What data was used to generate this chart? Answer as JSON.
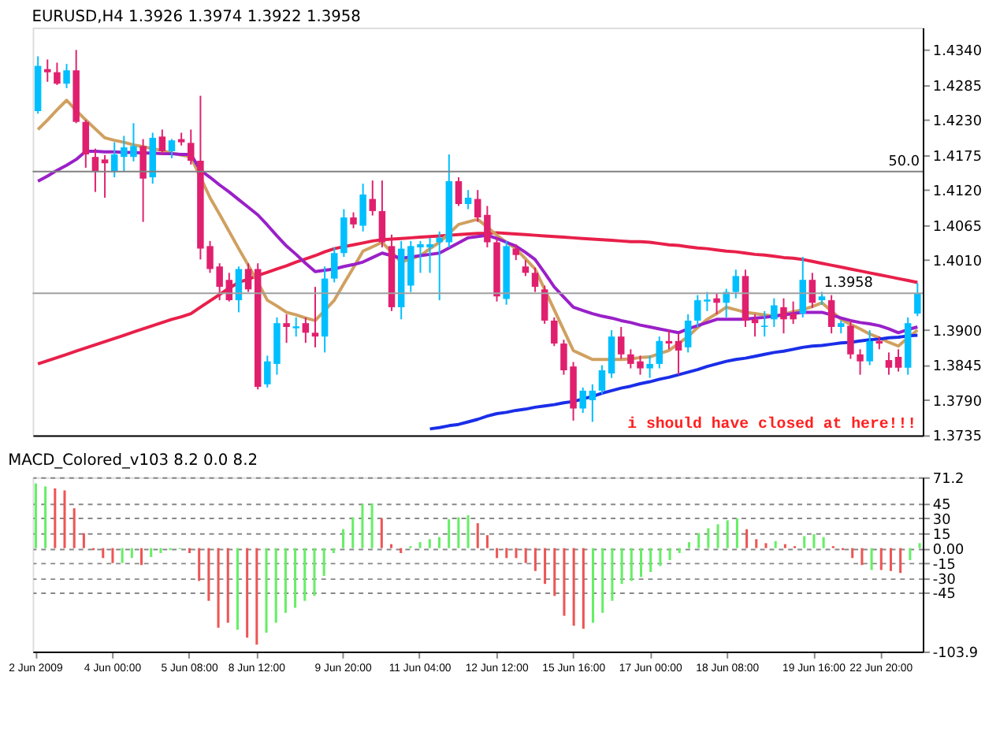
{
  "chart_data": [
    {
      "type": "candlestick",
      "title": "EURUSD,H4  1.3926 1.3974 1.3922 1.3958",
      "tick_labels": "y",
      "ohlc": [
        [
          1.4244,
          1.433,
          1.424,
          1.4315
        ],
        [
          1.431,
          1.4325,
          1.429,
          1.4305
        ],
        [
          1.4305,
          1.432,
          1.4285,
          1.4287
        ],
        [
          1.4287,
          1.4318,
          1.428,
          1.4308
        ],
        [
          1.4308,
          1.434,
          1.4225,
          1.4227
        ],
        [
          1.4227,
          1.423,
          1.4155,
          1.4176
        ],
        [
          1.4172,
          1.4185,
          1.4117,
          1.4149
        ],
        [
          1.4168,
          1.4175,
          1.4108,
          1.4162
        ],
        [
          1.4149,
          1.4195,
          1.414,
          1.4176
        ],
        [
          1.4172,
          1.4205,
          1.415,
          1.4187
        ],
        [
          1.4172,
          1.4225,
          1.4165,
          1.4189
        ],
        [
          1.4189,
          1.42,
          1.407,
          1.4138
        ],
        [
          1.414,
          1.421,
          1.413,
          1.4202
        ],
        [
          1.4204,
          1.4215,
          1.4175,
          1.4181
        ],
        [
          1.4181,
          1.42,
          1.417,
          1.4198
        ],
        [
          1.42,
          1.421,
          1.419,
          1.4195
        ],
        [
          1.4194,
          1.4215,
          1.416,
          1.4166
        ],
        [
          1.4166,
          1.4268,
          1.4011,
          1.4028
        ],
        [
          1.4032,
          1.404,
          1.399,
          1.3996
        ],
        [
          1.4,
          1.4005,
          1.3947,
          1.3968
        ],
        [
          1.3979,
          1.399,
          1.3945,
          1.3947
        ],
        [
          1.3947,
          1.4,
          1.3928,
          1.3996
        ],
        [
          1.3996,
          1.4005,
          1.396,
          1.3964
        ],
        [
          1.3996,
          1.4005,
          1.3807,
          1.3811
        ],
        [
          1.3815,
          1.386,
          1.381,
          1.3851
        ],
        [
          1.3847,
          1.392,
          1.383,
          1.3911
        ],
        [
          1.3911,
          1.3925,
          1.388,
          1.3905
        ],
        [
          1.3903,
          1.392,
          1.389,
          1.3906
        ],
        [
          1.3911,
          1.392,
          1.388,
          1.3896
        ],
        [
          1.3896,
          1.3968,
          1.3873,
          1.389
        ],
        [
          1.389,
          1.4,
          1.3865,
          1.3981
        ],
        [
          1.3981,
          1.403,
          1.3975,
          1.4021
        ],
        [
          1.4021,
          1.409,
          1.4015,
          1.4077
        ],
        [
          1.4077,
          1.4085,
          1.406,
          1.4066
        ],
        [
          1.4064,
          1.413,
          1.4055,
          1.4113
        ],
        [
          1.4106,
          1.4135,
          1.408,
          1.4087
        ],
        [
          1.4087,
          1.4135,
          1.403,
          1.4038
        ],
        [
          1.4032,
          1.405,
          1.393,
          1.3936
        ],
        [
          1.3936,
          1.404,
          1.3917,
          1.4028
        ],
        [
          1.397,
          1.404,
          1.396,
          1.4032
        ],
        [
          1.403,
          1.404,
          1.399,
          1.4035
        ],
        [
          1.403,
          1.4045,
          1.399,
          1.4035
        ],
        [
          1.4038,
          1.4055,
          1.3947,
          1.4045
        ],
        [
          1.4038,
          1.4176,
          1.403,
          1.4134
        ],
        [
          1.4134,
          1.414,
          1.4095,
          1.4098
        ],
        [
          1.4098,
          1.412,
          1.409,
          1.4108
        ],
        [
          1.4106,
          1.412,
          1.407,
          1.4077
        ],
        [
          1.4081,
          1.4095,
          1.403,
          1.4038
        ],
        [
          1.4038,
          1.4045,
          1.3945,
          1.3953
        ],
        [
          1.3949,
          1.404,
          1.394,
          1.4032
        ],
        [
          1.4028,
          1.4035,
          1.401,
          1.4018
        ],
        [
          1.4,
          1.401,
          1.3985,
          1.399
        ],
        [
          1.399,
          1.3998,
          1.396,
          1.3968
        ],
        [
          1.3964,
          1.397,
          1.391,
          1.3915
        ],
        [
          1.3915,
          1.392,
          1.3875,
          1.3879
        ],
        [
          1.3879,
          1.3885,
          1.383,
          1.3837
        ],
        [
          1.3843,
          1.385,
          1.3758,
          1.3777
        ],
        [
          1.3777,
          1.381,
          1.377,
          1.3805
        ],
        [
          1.379,
          1.3815,
          1.3756,
          1.3805
        ],
        [
          1.3805,
          1.3845,
          1.38,
          1.3837
        ],
        [
          1.3832,
          1.39,
          1.3825,
          1.389
        ],
        [
          1.389,
          1.3905,
          1.3855,
          1.3862
        ],
        [
          1.3862,
          1.387,
          1.384,
          1.3847
        ],
        [
          1.3851,
          1.386,
          1.383,
          1.384
        ],
        [
          1.384,
          1.386,
          1.3825,
          1.3847
        ],
        [
          1.3847,
          1.389,
          1.384,
          1.3883
        ],
        [
          1.3883,
          1.39,
          1.387,
          1.3879
        ],
        [
          1.3883,
          1.3895,
          1.383,
          1.3868
        ],
        [
          1.3873,
          1.3925,
          1.3865,
          1.3915
        ],
        [
          1.3915,
          1.3955,
          1.3905,
          1.3947
        ],
        [
          1.3945,
          1.396,
          1.393,
          1.3948
        ],
        [
          1.395,
          1.3958,
          1.3925,
          1.3943
        ],
        [
          1.3943,
          1.3965,
          1.392,
          1.396
        ],
        [
          1.396,
          1.3995,
          1.395,
          1.3985
        ],
        [
          1.3985,
          1.3995,
          1.3905,
          1.3915
        ],
        [
          1.3917,
          1.3925,
          1.389,
          1.3911
        ],
        [
          1.3905,
          1.393,
          1.389,
          1.3907
        ],
        [
          1.3917,
          1.395,
          1.3905,
          1.3939
        ],
        [
          1.3936,
          1.395,
          1.3895,
          1.3917
        ],
        [
          1.3926,
          1.3945,
          1.391,
          1.3917
        ],
        [
          1.3926,
          1.4015,
          1.392,
          1.3979
        ],
        [
          1.3979,
          1.399,
          1.3935,
          1.3943
        ],
        [
          1.3947,
          1.396,
          1.394,
          1.3953
        ],
        [
          1.3947,
          1.3955,
          1.3895,
          1.3905
        ],
        [
          1.3905,
          1.3915,
          1.3895,
          1.3911
        ],
        [
          1.3907,
          1.3915,
          1.3855,
          1.3862
        ],
        [
          1.3862,
          1.387,
          1.383,
          1.3851
        ],
        [
          1.3851,
          1.39,
          1.3845,
          1.3883
        ],
        [
          1.3883,
          1.389,
          1.387,
          1.3879
        ],
        [
          1.3853,
          1.3865,
          1.383,
          1.3841
        ],
        [
          1.3858,
          1.387,
          1.3835,
          1.3841
        ],
        [
          1.3841,
          1.392,
          1.383,
          1.3911
        ],
        [
          1.3926,
          1.3974,
          1.3922,
          1.3958
        ]
      ],
      "colors": [
        "#00bfff",
        "#e0206f",
        "#e0206f",
        "#00bfff",
        "#e0206f",
        "#e0206f",
        "#e0206f",
        "#e0206f",
        "#00bfff",
        "#00bfff",
        "#00bfff",
        "#e0206f",
        "#00bfff",
        "#e0206f",
        "#00bfff",
        "#e0206f",
        "#e0206f",
        "#e0206f",
        "#e0206f",
        "#e0206f",
        "#e0206f",
        "#00bfff",
        "#e0206f",
        "#e0206f",
        "#00bfff",
        "#00bfff",
        "#e0206f",
        "#00bfff",
        "#e0206f",
        "#e0206f",
        "#00bfff",
        "#00bfff",
        "#00bfff",
        "#e0206f",
        "#00bfff",
        "#e0206f",
        "#e0206f",
        "#e0206f",
        "#00bfff",
        "#00bfff",
        "#00bfff",
        "#00bfff",
        "#00bfff",
        "#00bfff",
        "#e0206f",
        "#00bfff",
        "#e0206f",
        "#e0206f",
        "#e0206f",
        "#00bfff",
        "#e0206f",
        "#e0206f",
        "#e0206f",
        "#e0206f",
        "#e0206f",
        "#e0206f",
        "#e0206f",
        "#00bfff",
        "#00bfff",
        "#00bfff",
        "#00bfff",
        "#e0206f",
        "#e0206f",
        "#e0206f",
        "#00bfff",
        "#00bfff",
        "#e0206f",
        "#e0206f",
        "#00bfff",
        "#00bfff",
        "#00bfff",
        "#e0206f",
        "#00bfff",
        "#00bfff",
        "#e0206f",
        "#e0206f",
        "#00bfff",
        "#00bfff",
        "#e0206f",
        "#e0206f",
        "#00bfff",
        "#e0206f",
        "#00bfff",
        "#e0206f",
        "#00bfff",
        "#e0206f",
        "#e0206f",
        "#00bfff",
        "#e0206f",
        "#e0206f",
        "#e0206f",
        "#00bfff",
        "#00bfff"
      ],
      "series": [
        {
          "type": "line",
          "color": "#e8204a",
          "values": [
            1.3847,
            1.3852,
            1.3857,
            1.3862,
            1.3867,
            1.3872,
            1.3877,
            1.3882,
            1.3887,
            1.3892,
            1.3897,
            1.3902,
            1.3907,
            1.3912,
            1.3917,
            1.3921,
            1.3926,
            1.3936,
            1.3946,
            1.3956,
            1.3966,
            1.3975,
            1.398,
            1.3986,
            1.3991,
            1.3996,
            1.4001,
            1.4007,
            1.4012,
            1.4017,
            1.4023,
            1.4028,
            1.4031,
            1.4034,
            1.4037,
            1.404,
            1.4042,
            1.4043,
            1.4044,
            1.4045,
            1.4046,
            1.4047,
            1.4048,
            1.4049,
            1.405,
            1.4051,
            1.4052,
            1.4052,
            1.4053,
            1.4052,
            1.4051,
            1.405,
            1.4049,
            1.4048,
            1.4047,
            1.4046,
            1.4045,
            1.4044,
            1.4043,
            1.4042,
            1.4041,
            1.404,
            1.4039,
            1.4039,
            1.4038,
            1.4036,
            1.4034,
            1.4033,
            1.4031,
            1.4029,
            1.4028,
            1.4026,
            1.4024,
            1.4023,
            1.4021,
            1.4019,
            1.4018,
            1.4016,
            1.4014,
            1.4013,
            1.4011,
            1.4008,
            1.4005,
            1.4002,
            1.3999,
            1.3996,
            1.3993,
            1.399,
            1.3987,
            1.3984,
            1.3981,
            1.3978,
            1.3975
          ]
        },
        {
          "type": "line",
          "color": "#d0a060",
          "values": [
            1.4215,
            1.423,
            1.4246,
            1.4261,
            1.4245,
            1.423,
            1.4216,
            1.4202,
            1.4198,
            1.4195,
            1.4191,
            1.4188,
            1.4185,
            1.4182,
            1.4178,
            1.4175,
            1.4172,
            1.414,
            1.4108,
            1.4082,
            1.4055,
            1.4028,
            1.4002,
            1.3975,
            1.3947,
            1.3938,
            1.3928,
            1.3924,
            1.3919,
            1.3915,
            1.3931,
            1.3947,
            1.3973,
            1.3998,
            1.4024,
            1.4031,
            1.4038,
            1.4022,
            1.4007,
            1.4012,
            1.4017,
            1.4028,
            1.4038,
            1.4052,
            1.4066,
            1.407,
            1.4074,
            1.4062,
            1.4049,
            1.4038,
            1.4028,
            1.4012,
            1.3996,
            1.3964,
            1.3932,
            1.39,
            1.3868,
            1.3861,
            1.3854,
            1.3854,
            1.3854,
            1.3854,
            1.3855,
            1.3857,
            1.3858,
            1.3863,
            1.3868,
            1.3879,
            1.389,
            1.3904,
            1.3917,
            1.3926,
            1.3936,
            1.3932,
            1.3928,
            1.3926,
            1.3924,
            1.3922,
            1.3925,
            1.3929,
            1.3932,
            1.3937,
            1.3943,
            1.393,
            1.3917,
            1.3909,
            1.3902,
            1.3894,
            1.3888,
            1.3881,
            1.3875,
            1.3888,
            1.39
          ]
        },
        {
          "type": "line",
          "color": "#9a20c8",
          "values": [
            1.4134,
            1.4142,
            1.4151,
            1.4159,
            1.4168,
            1.4181,
            1.4181,
            1.418,
            1.418,
            1.4179,
            1.4179,
            1.4178,
            1.4178,
            1.4177,
            1.4177,
            1.4176,
            1.4176,
            1.4151,
            1.414,
            1.4128,
            1.4117,
            1.4105,
            1.4093,
            1.4081,
            1.4065,
            1.4048,
            1.4032,
            1.4019,
            1.4005,
            1.3992,
            1.3994,
            1.3996,
            1.4,
            1.4003,
            1.4007,
            1.4014,
            1.4021,
            1.4017,
            1.4013,
            1.4015,
            1.4017,
            1.4019,
            1.4021,
            1.4029,
            1.4037,
            1.4045,
            1.4047,
            1.4049,
            1.4044,
            1.4038,
            1.4032,
            1.4022,
            1.4011,
            1.399,
            1.3968,
            1.3952,
            1.3936,
            1.3931,
            1.3926,
            1.3922,
            1.3919,
            1.3915,
            1.3912,
            1.3908,
            1.3905,
            1.3902,
            1.3899,
            1.3896,
            1.3902,
            1.3907,
            1.3912,
            1.3917,
            1.3917,
            1.3917,
            1.3917,
            1.3919,
            1.392,
            1.3922,
            1.3924,
            1.3926,
            1.3928,
            1.3928,
            1.3928,
            1.3924,
            1.3919,
            1.3915,
            1.3912,
            1.391,
            1.3907,
            1.3902,
            1.3896,
            1.3901,
            1.3905
          ]
        },
        {
          "type": "line",
          "color": "#1a2ee8",
          "values": [
            null,
            null,
            null,
            null,
            null,
            null,
            null,
            null,
            null,
            null,
            null,
            null,
            null,
            null,
            null,
            null,
            null,
            null,
            null,
            null,
            null,
            null,
            null,
            null,
            null,
            null,
            null,
            null,
            null,
            null,
            null,
            null,
            null,
            null,
            null,
            null,
            null,
            null,
            null,
            null,
            null,
            1.3745,
            1.3747,
            1.375,
            1.3752,
            1.3756,
            1.376,
            1.3765,
            1.3769,
            1.3771,
            1.3774,
            1.3776,
            1.3779,
            1.3781,
            1.3783,
            1.3786,
            1.3788,
            1.3792,
            1.3796,
            1.3801,
            1.3805,
            1.3809,
            1.3812,
            1.3816,
            1.3819,
            1.3823,
            1.3826,
            1.383,
            1.3834,
            1.3838,
            1.3843,
            1.3847,
            1.3851,
            1.3854,
            1.3856,
            1.3859,
            1.3862,
            1.3865,
            1.3867,
            1.387,
            1.3873,
            1.3875,
            1.3876,
            1.3878,
            1.388,
            1.3881,
            1.3883,
            1.3885,
            1.3886,
            1.3888,
            1.3889,
            1.3891,
            1.3892
          ]
        }
      ],
      "ylim": [
        1.3735,
        1.4375
      ],
      "yticks": [
        1.3735,
        {
          "value": 1.379,
          "label": "1.3790"
        },
        1.3845,
        {
          "value": 1.39,
          "label": "1.3900"
        },
        {
          "value": 1.401,
          "label": "1.4010"
        },
        1.4065,
        {
          "value": 1.412,
          "label": "1.4120"
        },
        1.4175,
        {
          "value": 1.423,
          "label": "1.4230"
        },
        1.4285,
        {
          "value": 1.434,
          "label": "1.4340"
        }
      ],
      "ref_lines": [
        {
          "axis": "y",
          "value": 1.4149,
          "color": "#808080"
        },
        {
          "axis": "y",
          "value": 1.3958,
          "label": "1.3958",
          "color": "#a0a0a0"
        }
      ],
      "annotations": [
        "i should have closed at here!!!",
        {
          "text": "50.0",
          "y": 1.4149
        }
      ]
    },
    {
      "type": "bar",
      "title": "MACD_Colored_v103 8.2 0.0 8.2",
      "categories": [
        "2 Jun 2009",
        null,
        null,
        null,
        null,
        null,
        null,
        null,
        "4 Jun 00:00",
        null,
        null,
        null,
        null,
        null,
        null,
        null,
        "5 Jun 08:00",
        null,
        null,
        null,
        null,
        null,
        null,
        "8 Jun 12:00",
        null,
        null,
        null,
        null,
        null,
        null,
        null,
        null,
        "9 Jun 20:00",
        null,
        null,
        null,
        null,
        null,
        null,
        null,
        "11 Jun 04:00",
        null,
        null,
        null,
        null,
        null,
        null,
        null,
        "12 Jun 12:00",
        null,
        null,
        null,
        null,
        null,
        null,
        null,
        "15 Jun 16:00",
        null,
        null,
        null,
        null,
        null,
        null,
        null,
        "17 Jun 00:00",
        null,
        null,
        null,
        null,
        null,
        null,
        null,
        "18 Jun 08:00",
        null,
        null,
        null,
        null,
        null,
        null,
        null,
        null,
        "19 Jun 16:00",
        null,
        null,
        null,
        null,
        null,
        null,
        "22 Jun 20:00",
        null,
        null,
        null,
        null
      ],
      "values": [
        65,
        62,
        60,
        58,
        40,
        15,
        -2,
        -10,
        -15,
        -15,
        -10,
        -17,
        -9,
        -5,
        -2,
        -1,
        -5,
        -33,
        -53,
        -80,
        -75,
        -82,
        -90,
        -97,
        -85,
        -75,
        -65,
        -60,
        -53,
        -48,
        -28,
        -5,
        19,
        31,
        44,
        45,
        30,
        4,
        -5,
        2,
        6,
        9,
        11,
        29,
        31,
        33,
        25,
        13,
        -10,
        -10,
        -10,
        -15,
        -23,
        -36,
        -48,
        -68,
        -78,
        -81,
        -75,
        -65,
        -53,
        -36,
        -33,
        -29,
        -24,
        -18,
        -12,
        -5,
        6,
        15,
        20,
        24,
        28,
        30,
        19,
        9,
        5,
        7,
        4,
        2,
        12,
        14,
        11,
        2,
        -2,
        -10,
        -17,
        -22,
        -22,
        -23,
        -25,
        -12,
        5
      ],
      "colors": [
        "#66ee66",
        "#66ee66",
        "#ee5555",
        "#ee5555",
        "#ee5555",
        "#ee5555",
        "#ee5555",
        "#ee5555",
        "#ee5555",
        "#66ee66",
        "#66ee66",
        "#ee5555",
        "#66ee66",
        "#66ee66",
        "#66ee66",
        "#66ee66",
        "#ee5555",
        "#ee5555",
        "#ee5555",
        "#ee5555",
        "#ee5555",
        "#66ee66",
        "#ee5555",
        "#ee5555",
        "#66ee66",
        "#66ee66",
        "#66ee66",
        "#66ee66",
        "#66ee66",
        "#66ee66",
        "#66ee66",
        "#66ee66",
        "#66ee66",
        "#66ee66",
        "#66ee66",
        "#66ee66",
        "#ee5555",
        "#ee5555",
        "#ee5555",
        "#66ee66",
        "#66ee66",
        "#66ee66",
        "#66ee66",
        "#66ee66",
        "#66ee66",
        "#66ee66",
        "#ee5555",
        "#ee5555",
        "#ee5555",
        "#ee5555",
        "#ee5555",
        "#ee5555",
        "#ee5555",
        "#ee5555",
        "#ee5555",
        "#ee5555",
        "#ee5555",
        "#ee5555",
        "#66ee66",
        "#66ee66",
        "#66ee66",
        "#66ee66",
        "#66ee66",
        "#66ee66",
        "#66ee66",
        "#66ee66",
        "#66ee66",
        "#66ee66",
        "#66ee66",
        "#66ee66",
        "#66ee66",
        "#66ee66",
        "#66ee66",
        "#66ee66",
        "#ee5555",
        "#ee5555",
        "#ee5555",
        "#66ee66",
        "#ee5555",
        "#ee5555",
        "#66ee66",
        "#66ee66",
        "#66ee66",
        "#ee5555",
        "#ee5555",
        "#ee5555",
        "#ee5555",
        "#66ee66",
        "#ee5555",
        "#ee5555",
        "#ee5555",
        "#66ee66",
        "#66ee66"
      ],
      "ylim": [
        -103.9,
        71.2
      ],
      "yticks": [
        71.2,
        45,
        30,
        15,
        {
          "value": 0,
          "label": "0.00"
        },
        -15,
        -30,
        -45,
        -103.9
      ],
      "grid": "y"
    }
  ]
}
